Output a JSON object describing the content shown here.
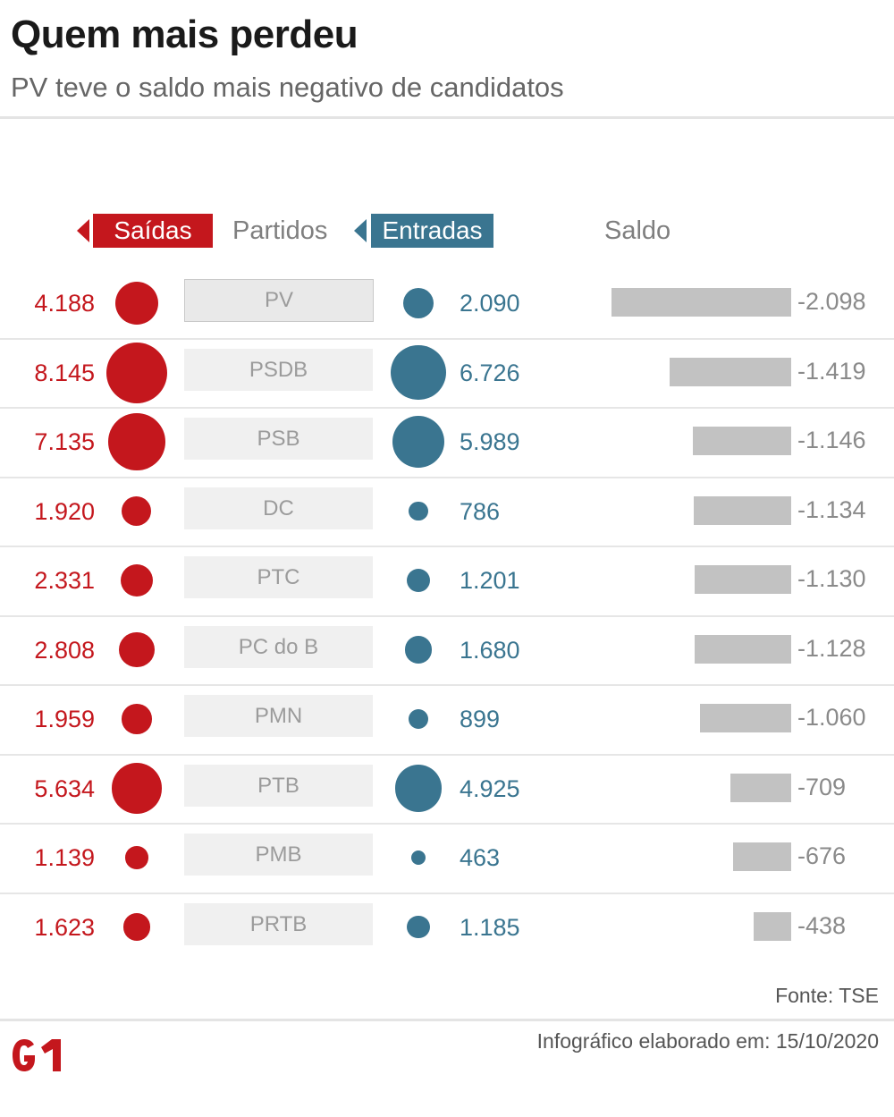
{
  "title": "Quem mais perdeu",
  "subtitle": "PV teve o saldo mais negativo de candidatos",
  "headers": {
    "out": "Saídas",
    "party": "Partidos",
    "in": "Entradas",
    "saldo": "Saldo"
  },
  "colors": {
    "out": "#c4171d",
    "in": "#3a7590",
    "bar": "#c2c2c2",
    "party_box": "#f0f0f0"
  },
  "chart_data": {
    "type": "table",
    "columns": [
      "Saídas",
      "Partidos",
      "Entradas",
      "Saldo"
    ],
    "rows": [
      {
        "party": "PV",
        "out": 4188,
        "out_label": "4.188",
        "in": 2090,
        "in_label": "2.090",
        "saldo": -2098,
        "saldo_label": "-2.098"
      },
      {
        "party": "PSDB",
        "out": 8145,
        "out_label": "8.145",
        "in": 6726,
        "in_label": "6.726",
        "saldo": -1419,
        "saldo_label": "-1.419"
      },
      {
        "party": "PSB",
        "out": 7135,
        "out_label": "7.135",
        "in": 5989,
        "in_label": "5.989",
        "saldo": -1146,
        "saldo_label": "-1.146"
      },
      {
        "party": "DC",
        "out": 1920,
        "out_label": "1.920",
        "in": 786,
        "in_label": "786",
        "saldo": -1134,
        "saldo_label": "-1.134"
      },
      {
        "party": "PTC",
        "out": 2331,
        "out_label": "2.331",
        "in": 1201,
        "in_label": "1.201",
        "saldo": -1130,
        "saldo_label": "-1.130"
      },
      {
        "party": "PC do B",
        "out": 2808,
        "out_label": "2.808",
        "in": 1680,
        "in_label": "1.680",
        "saldo": -1128,
        "saldo_label": "-1.128"
      },
      {
        "party": "PMN",
        "out": 1959,
        "out_label": "1.959",
        "in": 899,
        "in_label": "899",
        "saldo": -1060,
        "saldo_label": "-1.060"
      },
      {
        "party": "PTB",
        "out": 5634,
        "out_label": "5.634",
        "in": 4925,
        "in_label": "4.925",
        "saldo": -709,
        "saldo_label": "-709"
      },
      {
        "party": "PMB",
        "out": 1139,
        "out_label": "1.139",
        "in": 463,
        "in_label": "463",
        "saldo": -676,
        "saldo_label": "-676"
      },
      {
        "party": "PRTB",
        "out": 1623,
        "out_label": "1.623",
        "in": 1185,
        "in_label": "1.185",
        "saldo": -438,
        "saldo_label": "-438"
      }
    ]
  },
  "footer": {
    "source": "Fonte: TSE",
    "credit": "Infográfico elaborado em: 15/10/2020",
    "logo": "G1"
  }
}
